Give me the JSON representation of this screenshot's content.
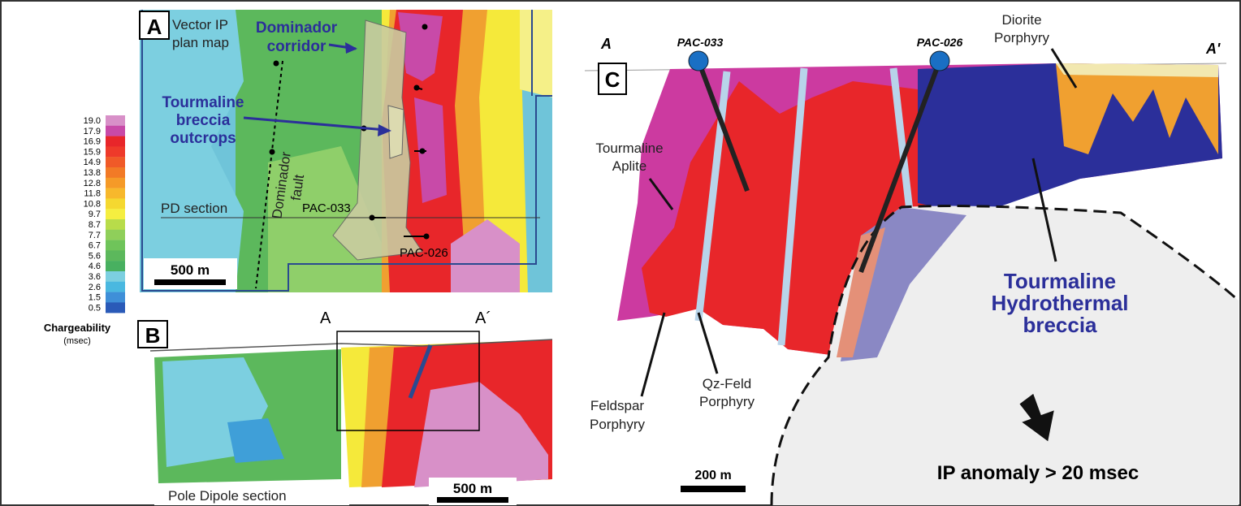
{
  "legend": {
    "ticks": [
      "19.0",
      "17.9",
      "16.9",
      "15.9",
      "14.9",
      "13.8",
      "12.8",
      "11.8",
      "10.8",
      "9.7",
      "8.7",
      "7.7",
      "6.7",
      "5.6",
      "4.6",
      "3.6",
      "2.6",
      "1.5",
      "0.5"
    ],
    "title": "Chargeability",
    "unit": "(msec)"
  },
  "panel_a": {
    "letter": "A",
    "map_label": [
      "Vector IP",
      "plan map"
    ],
    "corridor": [
      "Dominador",
      "corridor"
    ],
    "breccia": [
      "Tourmaline",
      "breccia",
      "outcrops"
    ],
    "fault": [
      "Dominador",
      "fault"
    ],
    "section": "PD section",
    "hole1": "PAC-033",
    "hole2": "PAC-026",
    "scale": "500 m"
  },
  "panel_b": {
    "letter": "B",
    "a": "A",
    "a_prime": "A´",
    "section": "Pole Dipole section",
    "scale": "500 m"
  },
  "panel_c": {
    "letter": "C",
    "a": "A",
    "a_prime": "A'",
    "hole1": "PAC-033",
    "hole2": "PAC-026",
    "diorite": [
      "Diorite",
      "Porphyry"
    ],
    "aplite": [
      "Tourmaline",
      "Aplite"
    ],
    "feldspar": [
      "Feldspar",
      "Porphyry"
    ],
    "qzfeld": [
      "Qz-Feld",
      "Porphyry"
    ],
    "breccia": [
      "Tourmaline",
      "Hydrothermal",
      "breccia"
    ],
    "anomaly": "IP anomaly > 20 msec",
    "scale": "200 m"
  }
}
